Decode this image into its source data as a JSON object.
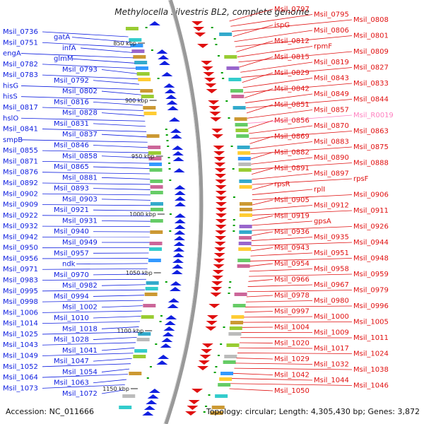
{
  "title": "Methylocella silvestris BL2, complete genome",
  "accession": "Accession: NC_011666",
  "summary": "Topology: circular; Length: 4,305,430 bp; Genes: 3,872",
  "colors": {
    "forward": "#1020e0",
    "reverse": "#e01010",
    "rna": "#ff80c0",
    "backbone": "#999999",
    "tick": "#00a000"
  },
  "scale_ticks": [
    "850 kbp",
    "900 kbp",
    "950 kbp",
    "1000 kbp",
    "1050 kbp",
    "1100 kbp",
    "1150 kbp"
  ],
  "left_labels": [
    "Msil_0736",
    "gatA",
    "Msil_0751",
    "infA",
    "engA",
    "glmM",
    "Msil_0782",
    "Msil_0793",
    "Msil_0783",
    "Msil_0792",
    "hisG",
    "Msil_0802",
    "hisS",
    "Msil_0816",
    "Msil_0817",
    "Msil_0828",
    "hslO",
    "Msil_0831",
    "Msil_0841",
    "Msil_0837",
    "smpB",
    "Msil_0846",
    "Msil_0855",
    "Msil_0858",
    "Msil_0871",
    "Msil_0865",
    "Msil_0876",
    "Msil_0881",
    "Msil_0892",
    "Msil_0893",
    "Msil_0902",
    "Msil_0903",
    "Msil_0909",
    "Msil_0921",
    "Msil_0922",
    "Msil_0931",
    "Msil_0932",
    "Msil_0940",
    "Msil_0942",
    "Msil_0949",
    "Msil_0950",
    "Msil_0957",
    "Msil_0956",
    "ndk",
    "Msil_0971",
    "Msil_0970",
    "Msil_0983",
    "Msil_0982",
    "Msil_0995",
    "Msil_0994",
    "Msil_0998",
    "Msil_1002",
    "Msil_1006",
    "Msil_1010",
    "Msil_1014",
    "Msil_1018",
    "Msil_1025",
    "Msil_1028",
    "Msil_1043",
    "Msil_1041",
    "Msil_1049",
    "Msil_1047",
    "Msil_1052",
    "Msil_1054",
    "Msil_1064",
    "Msil_1063",
    "Msil_1073",
    "Msil_1072"
  ],
  "right_labels": [
    "Msil_0797",
    "Msil_0795",
    "Msil_0808",
    "ispG",
    "Msil_0806",
    "Msil_0801",
    "Msil_0812",
    "rpmF",
    "Msil_0809",
    "Msil_0815",
    "Msil_0819",
    "Msil_0827",
    "Msil_0829",
    "Msil_0843",
    "Msil_0833",
    "Msil_0842",
    "Msil_0849",
    "Msil_0844",
    "Msil_0851",
    "Msil_0857",
    "Msil_R0019",
    "Msil_0856",
    "Msil_0870",
    "Msil_0863",
    "Msil_0869",
    "Msil_0883",
    "Msil_0875",
    "Msil_0882",
    "Msil_0890",
    "Msil_0888",
    "Msil_0891",
    "Msil_0897",
    "rpsF",
    "rpsR",
    "rplI",
    "Msil_0906",
    "Msil_0905",
    "Msil_0912",
    "Msil_0911",
    "Msil_0919",
    "gpsA",
    "Msil_0926",
    "Msil_0936",
    "Msil_0935",
    "Msil_0944",
    "Msil_0943",
    "Msil_0951",
    "Msil_0948",
    "Msil_0954",
    "Msil_0958",
    "Msil_0959",
    "Msil_0966",
    "Msil_0967",
    "Msil_0979",
    "Msil_0978",
    "Msil_0980",
    "Msil_0996",
    "Msil_0997",
    "Msil_1000",
    "Msil_1005",
    "Msil_1004",
    "Msil_1009",
    "Msil_1011",
    "Msil_1020",
    "Msil_1017",
    "Msil_1024",
    "Msil_1029",
    "Msil_1032",
    "Msil_1038",
    "Msil_1042",
    "Msil_1044",
    "Msil_1046",
    "Msil_1050"
  ]
}
